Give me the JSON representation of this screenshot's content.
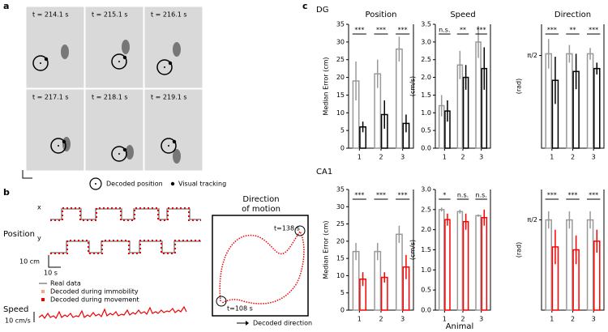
{
  "panel_labels": [
    "a",
    "b",
    "c"
  ],
  "panel_a": {
    "times": [
      "t = 214.1 s",
      "t = 215.1 s",
      "t = 216.1 s",
      "t = 217.1 s",
      "t = 218.1 s",
      "t = 219.1 s"
    ],
    "legend": [
      "Decoded position",
      "Visual tracking"
    ]
  },
  "panel_b": {
    "trace_labels": [
      "x",
      "y"
    ],
    "position_label": "Position",
    "scale_position": "10 cm",
    "scale_time": "10 s",
    "legend": [
      "Real data",
      "Decoded during immobility",
      "Decoded during movement"
    ],
    "speed_label": "Speed",
    "scale_speed": "10 cm/s",
    "direction_title": [
      "Direction",
      "of motion"
    ],
    "time_end": "t=138 s",
    "time_start": "t=108 s",
    "direction_legend": "Decoded direction"
  },
  "region_labels": [
    "DG",
    "CA1"
  ],
  "x_label": "Animal",
  "chart_data": [
    {
      "type": "bar",
      "title": "Position",
      "ylabel": "Median Error (cm)",
      "categories": [
        "1",
        "2",
        "3"
      ],
      "ylim": [
        0,
        35
      ],
      "yticks": [
        0,
        5,
        10,
        15,
        20,
        25,
        30,
        35
      ],
      "series": [
        {
          "color": "#999999",
          "values": [
            19,
            21,
            28
          ],
          "errors": [
            5.5,
            4,
            3.5
          ]
        },
        {
          "color": "#000000",
          "values": [
            6,
            9.5,
            7
          ],
          "errors": [
            1.5,
            4,
            2.5
          ]
        }
      ],
      "significance": [
        "***",
        "***",
        "***"
      ]
    },
    {
      "type": "bar",
      "title": "Speed",
      "ylabel": "(cm/s)",
      "categories": [
        "1",
        "2",
        "3"
      ],
      "ylim": [
        0,
        3.5
      ],
      "yticks": [
        {
          "value": 0,
          "label": "0.0"
        },
        0.5,
        {
          "value": 1,
          "label": "1.0"
        },
        1.5,
        {
          "value": 2,
          "label": "2.0"
        },
        2.5,
        {
          "value": 3,
          "label": "3.0"
        },
        3.5
      ],
      "series": [
        {
          "color": "#999999",
          "values": [
            1.2,
            2.35,
            3.0
          ],
          "errors": [
            0.3,
            0.4,
            0.45
          ]
        },
        {
          "color": "#000000",
          "values": [
            1.05,
            2.0,
            2.25
          ],
          "errors": [
            0.3,
            0.35,
            0.6
          ]
        }
      ],
      "significance": [
        "n.s.",
        "**",
        "***"
      ]
    },
    {
      "type": "bar",
      "title": "Direction",
      "ylabel": "(rad)",
      "categories": [
        "1",
        "2",
        "3"
      ],
      "ylim": [
        0,
        2.1
      ],
      "yticks": [
        {
          "value": 1.5708,
          "label": "π/2"
        }
      ],
      "series": [
        {
          "color": "#999999",
          "values": [
            1.6,
            1.6,
            1.6
          ],
          "errors": [
            0.25,
            0.15,
            0.1
          ]
        },
        {
          "color": "#000000",
          "values": [
            1.15,
            1.3,
            1.35
          ],
          "errors": [
            0.4,
            0.3,
            0.1
          ]
        }
      ],
      "significance": [
        "***",
        "**",
        "***"
      ]
    },
    {
      "type": "bar",
      "ylabel": "Median Error (cm)",
      "categories": [
        "1",
        "2",
        "3"
      ],
      "ylim": [
        0,
        35
      ],
      "yticks": [
        0,
        5,
        10,
        15,
        20,
        25,
        30,
        35
      ],
      "series": [
        {
          "color": "#999999",
          "values": [
            17,
            17,
            22
          ],
          "errors": [
            2.5,
            2.5,
            2.5
          ]
        },
        {
          "color": "#ff0000",
          "values": [
            9,
            9.5,
            12.5
          ],
          "errors": [
            2,
            1.5,
            3.5
          ]
        }
      ],
      "significance": [
        "***",
        "***",
        "***"
      ]
    },
    {
      "type": "bar",
      "ylabel": "(cm/s)",
      "categories": [
        "1",
        "2",
        "3"
      ],
      "ylim": [
        0,
        3.0
      ],
      "yticks": [
        {
          "value": 0,
          "label": "0.0"
        },
        0.5,
        {
          "value": 1,
          "label": "1.0"
        },
        1.5,
        {
          "value": 2,
          "label": "2.0"
        },
        2.5,
        {
          "value": 3,
          "label": "3.0"
        }
      ],
      "series": [
        {
          "color": "#999999",
          "values": [
            2.5,
            2.45,
            2.35
          ],
          "errors": [
            0.05,
            0.05,
            0.03
          ]
        },
        {
          "color": "#ff0000",
          "values": [
            2.25,
            2.2,
            2.3
          ],
          "errors": [
            0.15,
            0.2,
            0.2
          ]
        }
      ],
      "significance": [
        "*",
        "n.s.",
        "n.s."
      ]
    },
    {
      "type": "bar",
      "ylabel": "(rad)",
      "categories": [
        "1",
        "2",
        "3"
      ],
      "ylim": [
        0,
        2.1
      ],
      "yticks": [
        {
          "value": 1.5708,
          "label": "π/2"
        }
      ],
      "series": [
        {
          "color": "#999999",
          "values": [
            1.57,
            1.57,
            1.57
          ],
          "errors": [
            0.15,
            0.15,
            0.15
          ]
        },
        {
          "color": "#ff0000",
          "values": [
            1.1,
            1.05,
            1.2
          ],
          "errors": [
            0.3,
            0.25,
            0.2
          ]
        }
      ],
      "significance": [
        "***",
        "***",
        "***"
      ]
    }
  ]
}
